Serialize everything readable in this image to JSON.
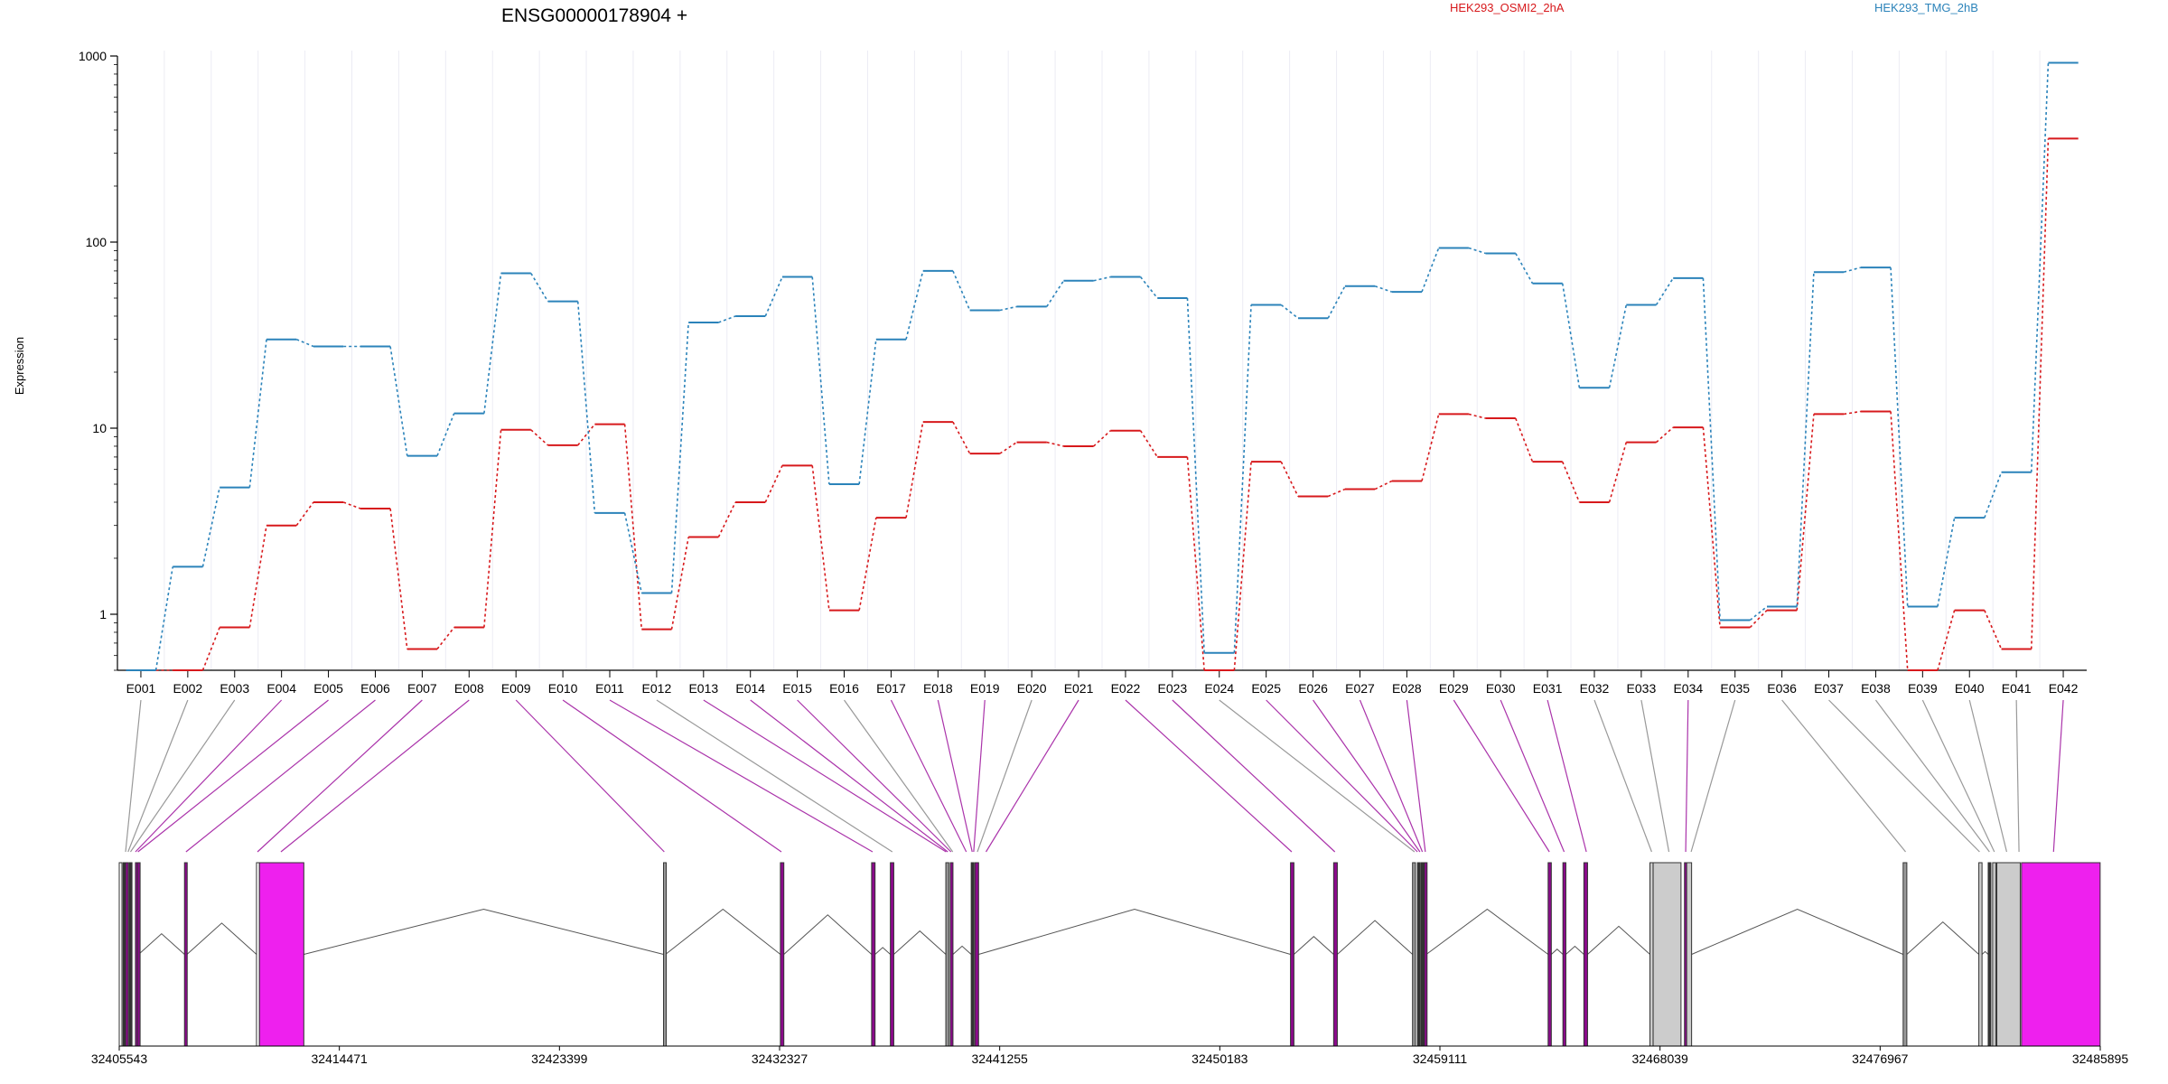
{
  "chart_data": {
    "type": "line",
    "title": "ENSG00000178904 +",
    "ylabel": "Expression",
    "yscale": "log",
    "ylim": [
      0.5,
      1000
    ],
    "yticks": [
      1,
      10,
      100,
      1000
    ],
    "categories": [
      "E001",
      "E002",
      "E003",
      "E004",
      "E005",
      "E006",
      "E007",
      "E008",
      "E009",
      "E010",
      "E011",
      "E012",
      "E013",
      "E014",
      "E015",
      "E016",
      "E017",
      "E018",
      "E019",
      "E020",
      "E021",
      "E022",
      "E023",
      "E024",
      "E025",
      "E026",
      "E027",
      "E028",
      "E029",
      "E030",
      "E031",
      "E032",
      "E033",
      "E034",
      "E035",
      "E036",
      "E037",
      "E038",
      "E039",
      "E040",
      "E041",
      "E042"
    ],
    "series": [
      {
        "name": "HEK293_OSMI2_2hA",
        "color": "#d7191c",
        "values": [
          0.5,
          0.5,
          0.85,
          3,
          4,
          3.7,
          0.65,
          0.85,
          9.8,
          8.1,
          10.5,
          0.83,
          2.6,
          4,
          6.3,
          1.05,
          3.3,
          10.8,
          7.3,
          8.4,
          8,
          9.7,
          7,
          0.5,
          6.6,
          4.3,
          4.7,
          5.2,
          11.9,
          11.3,
          6.6,
          4,
          8.4,
          10.1,
          0.85,
          1.05,
          11.9,
          12.3,
          0.5,
          1.05,
          0.65,
          360
        ]
      },
      {
        "name": "HEK293_TMG_2hB",
        "color": "#2b83ba",
        "values": [
          0.5,
          1.8,
          4.8,
          30,
          27.5,
          27.5,
          7.1,
          12,
          68,
          48,
          3.5,
          1.3,
          37,
          40,
          65,
          5,
          30,
          70,
          43,
          45,
          62,
          65,
          50,
          0.62,
          46,
          39,
          58,
          54,
          93,
          87,
          60,
          16.5,
          46,
          64,
          0.93,
          1.1,
          69,
          73,
          1.1,
          3.3,
          5.8,
          920
        ]
      }
    ],
    "genomic_ticks": [
      "32405543",
      "32414471",
      "32423399",
      "32432327",
      "32441255",
      "32450183",
      "32459111",
      "32468039",
      "32476967",
      "32485895"
    ],
    "gene_range": [
      32405543,
      32485895
    ],
    "exons": [
      {
        "start": 32405700,
        "end": 32405750,
        "color": "#333333"
      },
      {
        "start": 32405800,
        "end": 32405850,
        "color": "#8b0a8b"
      },
      {
        "start": 32405950,
        "end": 32406000,
        "color": "#333333"
      },
      {
        "start": 32406200,
        "end": 32406250,
        "color": "#8b0a8b"
      },
      {
        "start": 32406280,
        "end": 32406330,
        "color": "#8b0a8b"
      },
      {
        "start": 32408190,
        "end": 32408290,
        "color": "#8b0a8b"
      },
      {
        "start": 32411110,
        "end": 32411230,
        "color": "#ffffff"
      },
      {
        "start": 32411230,
        "end": 32413030,
        "color": "#ee20ee"
      },
      {
        "start": 32427620,
        "end": 32427700,
        "color": "#999999"
      },
      {
        "start": 32432360,
        "end": 32432500,
        "color": "#8b0a8b"
      },
      {
        "start": 32436060,
        "end": 32436200,
        "color": "#8b0a8b"
      },
      {
        "start": 32436820,
        "end": 32436960,
        "color": "#8b0a8b"
      },
      {
        "start": 32439070,
        "end": 32439190,
        "color": "#999999"
      },
      {
        "start": 32439250,
        "end": 32439360,
        "color": "#8b0a8b"
      },
      {
        "start": 32440100,
        "end": 32440180,
        "color": "#333333"
      },
      {
        "start": 32440250,
        "end": 32440400,
        "color": "#8b0a8b"
      },
      {
        "start": 32453050,
        "end": 32453190,
        "color": "#8b0a8b"
      },
      {
        "start": 32454800,
        "end": 32454950,
        "color": "#8b0a8b"
      },
      {
        "start": 32458000,
        "end": 32458120,
        "color": "#999999"
      },
      {
        "start": 32458200,
        "end": 32458290,
        "color": "#333333"
      },
      {
        "start": 32458350,
        "end": 32458440,
        "color": "#333333"
      },
      {
        "start": 32458480,
        "end": 32458560,
        "color": "#8b0a8b"
      },
      {
        "start": 32463500,
        "end": 32463630,
        "color": "#8b0a8b"
      },
      {
        "start": 32464100,
        "end": 32464220,
        "color": "#8b0a8b"
      },
      {
        "start": 32464950,
        "end": 32465100,
        "color": "#8b0a8b"
      },
      {
        "start": 32467630,
        "end": 32467760,
        "color": "#cccccc"
      },
      {
        "start": 32467760,
        "end": 32468890,
        "color": "#cccccc"
      },
      {
        "start": 32469030,
        "end": 32469120,
        "color": "#8b0a8b"
      },
      {
        "start": 32469120,
        "end": 32469320,
        "color": "#cccccc"
      },
      {
        "start": 32477900,
        "end": 32478050,
        "color": "#999999"
      },
      {
        "start": 32480970,
        "end": 32481100,
        "color": "#cccccc"
      },
      {
        "start": 32481350,
        "end": 32481440,
        "color": "#333333"
      },
      {
        "start": 32481530,
        "end": 32481660,
        "color": "#cccccc"
      },
      {
        "start": 32481700,
        "end": 32482650,
        "color": "#cccccc"
      },
      {
        "start": 32482700,
        "end": 32485890,
        "color": "#ee20ee"
      }
    ],
    "connector_targets": [
      32405800,
      32405900,
      32406000,
      32406200,
      32406300,
      32408250,
      32411150,
      32412100,
      32427650,
      32432400,
      32436100,
      32436900,
      32439080,
      32439150,
      32439280,
      32439350,
      32439900,
      32440140,
      32440200,
      32440350,
      32440700,
      32453100,
      32454850,
      32458080,
      32458200,
      32458300,
      32458400,
      32458520,
      32463550,
      32464150,
      32465050,
      32467700,
      32468400,
      32469080,
      32469300,
      32478000,
      32481000,
      32481400,
      32481600,
      32482100,
      32482600,
      32484000
    ],
    "connector_colors": [
      "#999999",
      "#999999",
      "#999999",
      "#aa33aa",
      "#aa33aa",
      "#aa33aa",
      "#aa33aa",
      "#aa33aa",
      "#aa33aa",
      "#aa33aa",
      "#aa33aa",
      "#999999",
      "#aa33aa",
      "#aa33aa",
      "#aa33aa",
      "#999999",
      "#aa33aa",
      "#aa33aa",
      "#aa33aa",
      "#999999",
      "#aa33aa",
      "#aa33aa",
      "#aa33aa",
      "#999999",
      "#aa33aa",
      "#aa33aa",
      "#aa33aa",
      "#aa33aa",
      "#aa33aa",
      "#aa33aa",
      "#aa33aa",
      "#999999",
      "#999999",
      "#aa33aa",
      "#999999",
      "#999999",
      "#999999",
      "#999999",
      "#999999",
      "#999999",
      "#999999",
      "#aa33aa"
    ]
  }
}
